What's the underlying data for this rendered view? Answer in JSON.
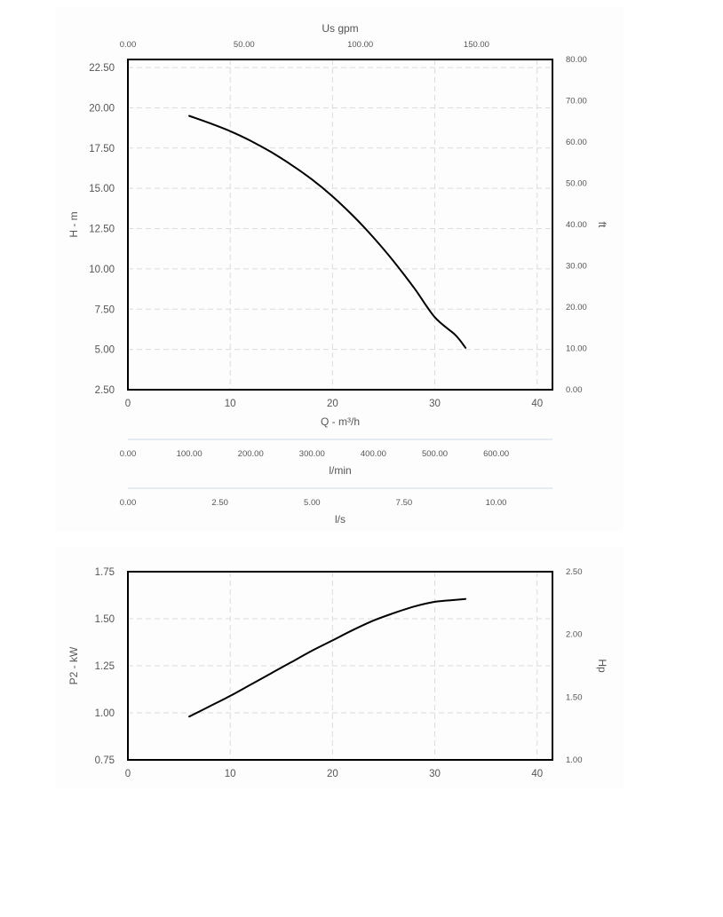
{
  "chart_data": [
    {
      "id": "head",
      "type": "line",
      "xlabel": "Q - m³/h",
      "ylabel": "H - m",
      "y2label": "ft",
      "x2label": "Us gpm",
      "xlim": [
        0,
        41.5
      ],
      "ylim": [
        2.5,
        23
      ],
      "xticks": [
        0,
        10,
        20,
        30,
        40
      ],
      "xtick_labels": [
        "0",
        "10",
        "20",
        "30",
        "40"
      ],
      "yticks": [
        2.5,
        5,
        7.5,
        10,
        12.5,
        15,
        17.5,
        20,
        22.5
      ],
      "ytick_labels": [
        "2.50",
        "5.00",
        "7.50",
        "10.00",
        "12.50",
        "15.00",
        "17.50",
        "20.00",
        "22.50"
      ],
      "y2lim": [
        0,
        80
      ],
      "y2ticks": [
        0,
        10,
        20,
        30,
        40,
        50,
        60,
        70,
        80
      ],
      "y2tick_labels": [
        "0.00",
        "10.00",
        "20.00",
        "30.00",
        "40.00",
        "50.00",
        "60.00",
        "70.00",
        "80.00"
      ],
      "x2lim": [
        0,
        182.7
      ],
      "x2ticks": [
        0,
        50,
        100,
        150
      ],
      "x2tick_labels": [
        "0.00",
        "50.00",
        "100.00",
        "150.00"
      ],
      "grid": true,
      "series": [
        {
          "x": [
            6,
            8,
            10,
            12,
            14,
            16,
            18,
            20,
            22,
            24,
            26,
            28,
            30,
            32,
            33
          ],
          "y": [
            19.5,
            19.05,
            18.55,
            17.95,
            17.25,
            16.45,
            15.55,
            14.5,
            13.3,
            11.95,
            10.45,
            8.8,
            7.0,
            5.9,
            5.1
          ]
        }
      ]
    },
    {
      "id": "power",
      "type": "line",
      "xlabel": "",
      "ylabel": "P2 - kW",
      "y2label": "Hp",
      "xlim": [
        0,
        41.5
      ],
      "ylim": [
        0.75,
        1.75
      ],
      "xticks": [
        0,
        10,
        20,
        30,
        40
      ],
      "xtick_labels": [
        "0",
        "10",
        "20",
        "30",
        "40"
      ],
      "yticks": [
        0.75,
        1.0,
        1.25,
        1.5,
        1.75
      ],
      "ytick_labels": [
        "0.75",
        "1.00",
        "1.25",
        "1.50",
        "1.75"
      ],
      "y2lim": [
        1.0,
        2.5
      ],
      "y2ticks": [
        1.0,
        1.5,
        2.0,
        2.5
      ],
      "y2tick_labels": [
        "1.00",
        "1.50",
        "2.00",
        "2.50"
      ],
      "grid": true,
      "series": [
        {
          "x": [
            6,
            8,
            10,
            12,
            14,
            16,
            18,
            20,
            22,
            24,
            26,
            28,
            30,
            32,
            33
          ],
          "y": [
            0.98,
            1.035,
            1.09,
            1.15,
            1.21,
            1.27,
            1.33,
            1.385,
            1.44,
            1.49,
            1.53,
            1.565,
            1.59,
            1.6,
            1.605
          ]
        }
      ]
    }
  ],
  "extra_scales": [
    {
      "id": "lmin",
      "label": "l/min",
      "lim": [
        0,
        691.7
      ],
      "ticks": [
        0,
        100,
        200,
        300,
        400,
        500,
        600
      ],
      "tick_labels": [
        "0.00",
        "100.00",
        "200.00",
        "300.00",
        "400.00",
        "500.00",
        "600.00"
      ]
    },
    {
      "id": "ls",
      "label": "l/s",
      "lim": [
        0,
        11.53
      ],
      "ticks": [
        0,
        2.5,
        5,
        7.5,
        10
      ],
      "tick_labels": [
        "0.00",
        "2.50",
        "5.00",
        "7.50",
        "10.00"
      ]
    }
  ]
}
